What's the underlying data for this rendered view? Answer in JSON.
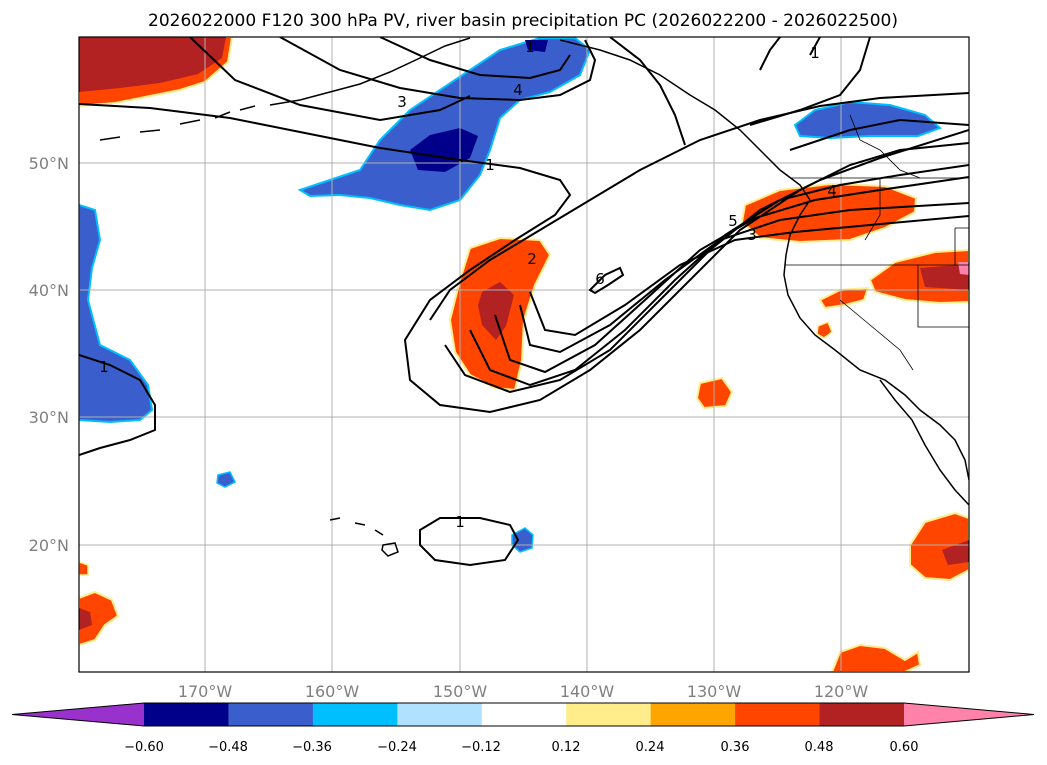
{
  "title": "2026022000 F120 300 hPa PV, river basin precipitation PC (2026022200 - 2026022500)",
  "lat_labels": [
    "50°N",
    "40°N",
    "30°N",
    "20°N"
  ],
  "lon_labels": [
    "170°W",
    "160°W",
    "150°W",
    "140°W",
    "130°W",
    "120°W"
  ],
  "colorbar": {
    "ticks": [
      "−0.60",
      "−0.48",
      "−0.36",
      "−0.24",
      "−0.12",
      "0.12",
      "0.24",
      "0.36",
      "0.48",
      "0.60"
    ],
    "colors": [
      "#9932cc",
      "#00008b",
      "#3a5fcd",
      "#00bfff",
      "#b0e2ff",
      "#ffffff",
      "#ffec8b",
      "#ffa500",
      "#ff4500",
      "#b22222",
      "#ff82ab"
    ]
  },
  "contour_labels": [
    "1",
    "3",
    "4",
    "1",
    "1",
    "2",
    "6",
    "5",
    "3",
    "4",
    "1",
    "1"
  ],
  "colors": {
    "coast": "#000000",
    "grid": "#b0b0b0",
    "contour": "#000000"
  }
}
